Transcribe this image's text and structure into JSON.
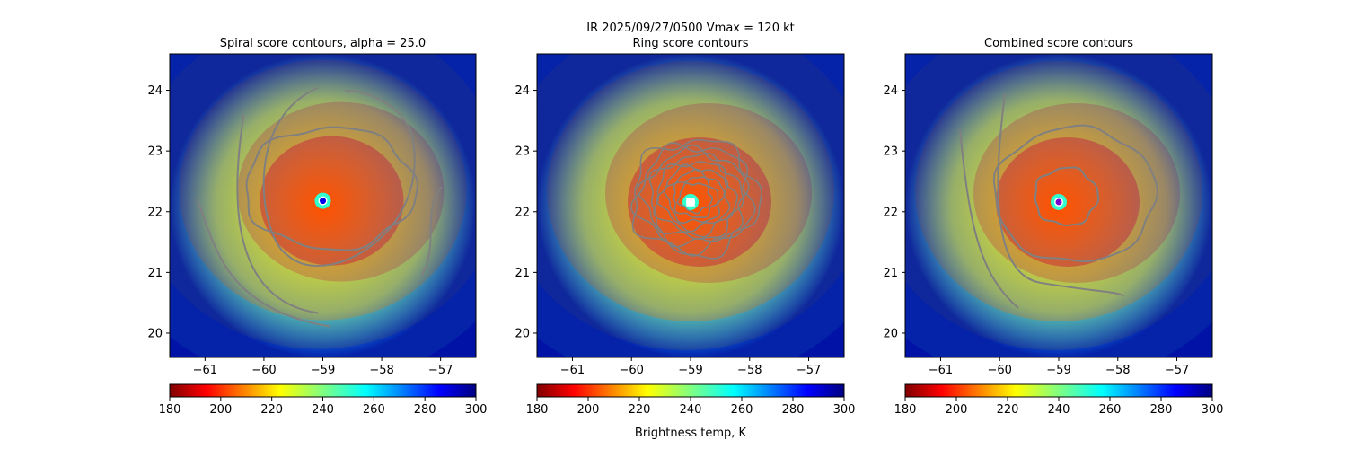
{
  "suptitle": "IR  2025/09/27/0500    Vmax = 120 kt",
  "colorbar_label": "Brightness temp, K",
  "colormap": "jet_r",
  "chart_data": [
    {
      "type": "heatmap",
      "title": "Spiral score contours, alpha = 25.0",
      "xlim": [
        -61.6,
        -56.4
      ],
      "ylim": [
        19.6,
        24.6
      ],
      "x_ticks": [
        "-61",
        "-60",
        "-59",
        "-58",
        "-57"
      ],
      "y_ticks": [
        "20",
        "21",
        "22",
        "23",
        "24"
      ],
      "center_marker": {
        "lon": -59.0,
        "lat": 22.18,
        "style": "dot",
        "color": "#0000ee"
      },
      "colorbar": {
        "min": 180,
        "max": 300,
        "ticks": [
          "180",
          "200",
          "220",
          "240",
          "260",
          "280",
          "300"
        ]
      }
    },
    {
      "type": "heatmap",
      "title": "Ring score contours",
      "xlim": [
        -61.6,
        -56.4
      ],
      "ylim": [
        19.6,
        24.6
      ],
      "x_ticks": [
        "-61",
        "-60",
        "-59",
        "-58",
        "-57"
      ],
      "y_ticks": [
        "20",
        "21",
        "22",
        "23",
        "24"
      ],
      "center_marker": {
        "lon": -59.0,
        "lat": 22.16,
        "style": "square",
        "color": "#ffffff"
      },
      "colorbar": {
        "min": 180,
        "max": 300,
        "ticks": [
          "180",
          "200",
          "220",
          "240",
          "260",
          "280",
          "300"
        ]
      }
    },
    {
      "type": "heatmap",
      "title": "Combined score contours",
      "xlim": [
        -61.6,
        -56.4
      ],
      "ylim": [
        19.6,
        24.6
      ],
      "x_ticks": [
        "-61",
        "-60",
        "-59",
        "-58",
        "-57"
      ],
      "y_ticks": [
        "20",
        "21",
        "22",
        "23",
        "24"
      ],
      "center_marker": {
        "lon": -59.0,
        "lat": 22.16,
        "style": "dot",
        "color": "#7700cc"
      },
      "colorbar": {
        "min": 180,
        "max": 300,
        "ticks": [
          "180",
          "200",
          "220",
          "240",
          "260",
          "280",
          "300"
        ]
      }
    }
  ]
}
